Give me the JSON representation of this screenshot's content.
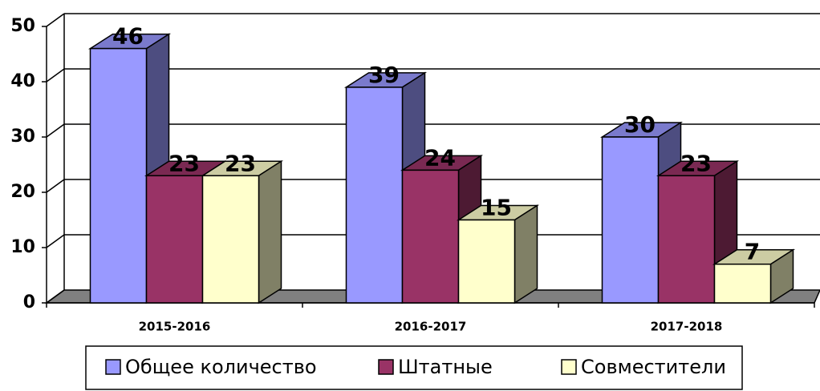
{
  "chart_data": {
    "type": "bar3d",
    "categories": [
      "2015-2016",
      "2016-2017",
      "2017-2018"
    ],
    "series": [
      {
        "name": "Общее количество",
        "color": "#9999ff",
        "values": [
          46,
          39,
          30
        ]
      },
      {
        "name": "Штатные",
        "color": "#993366",
        "values": [
          23,
          24,
          23
        ]
      },
      {
        "name": "Совместители",
        "color": "#ffffcc",
        "values": [
          23,
          15,
          7
        ]
      }
    ],
    "ylim": [
      0,
      50
    ],
    "yticks": [
      0,
      10,
      20,
      30,
      40,
      50
    ],
    "grid": true,
    "legend": "bottom"
  }
}
